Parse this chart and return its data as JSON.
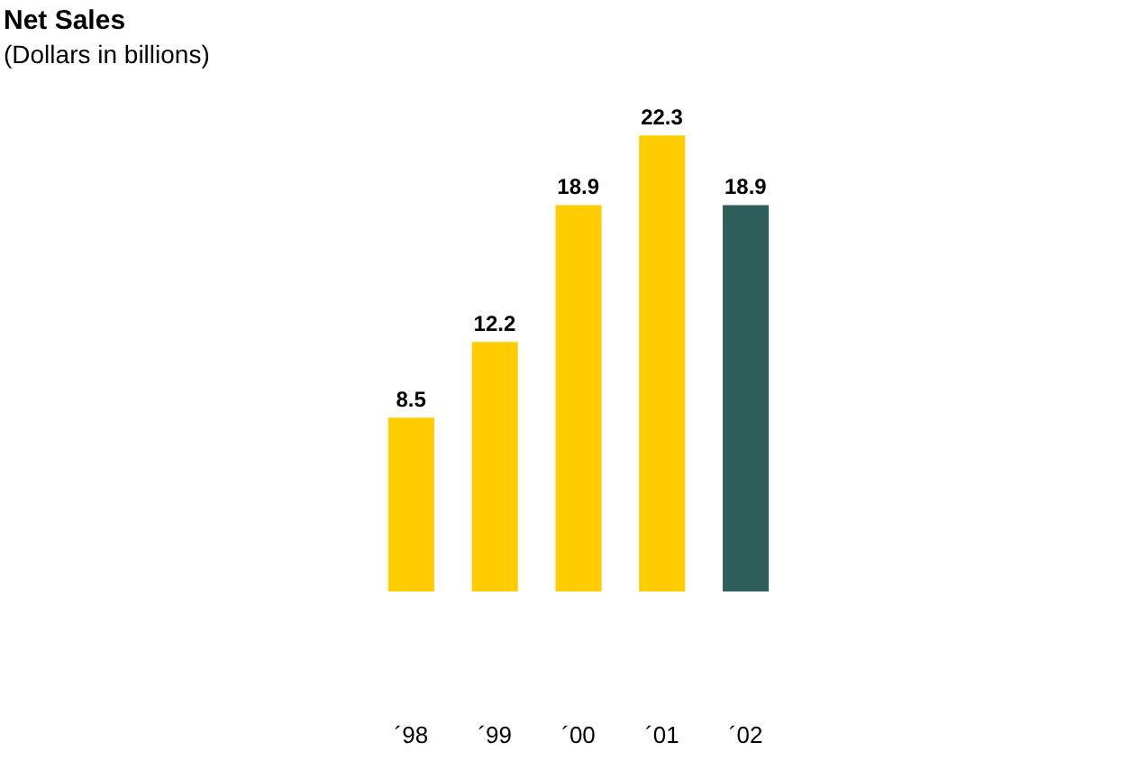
{
  "chart_data": {
    "type": "bar",
    "title": "Net Sales",
    "subtitle": "(Dollars in billions)",
    "categories": [
      "´98",
      "´99",
      "´00",
      "´01",
      "´02"
    ],
    "values": [
      8.5,
      12.2,
      18.9,
      22.3,
      18.9
    ],
    "colors": [
      "#ffcc00",
      "#ffcc00",
      "#ffcc00",
      "#ffcc00",
      "#2e5e5a"
    ],
    "data_labels": true,
    "tick_labels": "x"
  }
}
